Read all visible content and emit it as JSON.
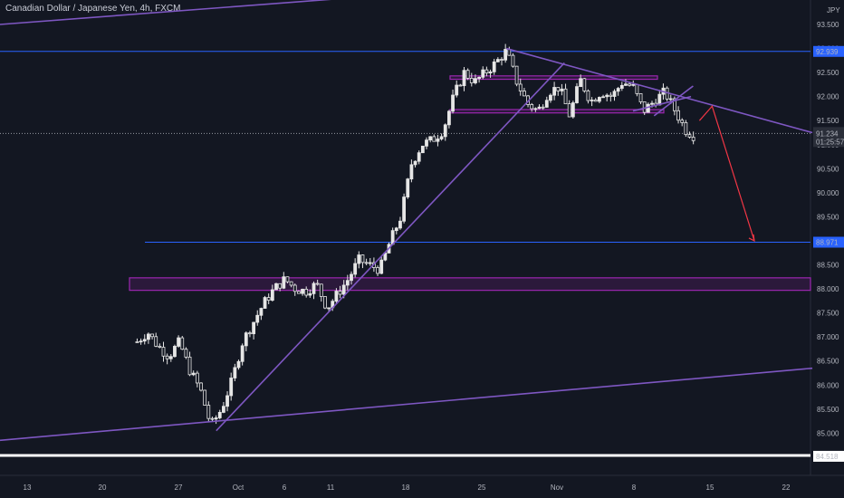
{
  "chart_data": {
    "type": "candlestick",
    "title": "Canadian Dollar / Japanese Yen, 4h, FXCM",
    "currency": "JPY",
    "y_ticks": [
      "93.500",
      "93.000",
      "92.500",
      "92.000",
      "91.500",
      "91.000",
      "90.500",
      "90.000",
      "89.500",
      "89.000",
      "88.500",
      "88.000",
      "87.500",
      "87.000",
      "86.500",
      "86.000",
      "85.500",
      "85.000"
    ],
    "x_ticks": [
      "13",
      "20",
      "27",
      "Oct",
      "6",
      "11",
      "18",
      "25",
      "Nov",
      "8",
      "15",
      "22"
    ],
    "ylim": [
      84.3,
      93.9
    ],
    "price_labels": {
      "resistance": "92.939",
      "target": "88.971",
      "current_price": "91.234",
      "countdown": "01:25:57",
      "bottom": "84.518"
    },
    "levels": [
      92.939,
      88.971,
      84.518,
      91.234
    ],
    "zones": [
      {
        "low": 87.97,
        "high": 88.23
      },
      {
        "low": 92.36,
        "high": 92.43
      },
      {
        "low": 91.66,
        "high": 91.73
      }
    ],
    "price_path": [
      [
        13,
        86.9
      ],
      [
        14,
        87.1
      ],
      [
        15,
        86.8
      ],
      [
        16,
        86.6
      ],
      [
        17,
        86.9
      ],
      [
        18,
        86.3
      ],
      [
        19,
        85.9
      ],
      [
        20,
        85.15
      ],
      [
        21,
        85.5
      ],
      [
        22,
        86.1
      ],
      [
        23,
        86.9
      ],
      [
        24,
        87.3
      ],
      [
        25,
        87.7
      ],
      [
        26,
        88.0
      ],
      [
        27,
        88.2
      ],
      [
        28,
        88.0
      ],
      [
        29,
        87.95
      ],
      [
        30,
        88.1
      ],
      [
        31,
        87.6
      ],
      [
        32,
        87.9
      ],
      [
        33,
        88.2
      ],
      [
        34,
        88.6
      ],
      [
        35,
        88.5
      ],
      [
        36,
        88.4
      ],
      [
        37,
        89.0
      ],
      [
        38,
        89.5
      ],
      [
        39,
        90.6
      ],
      [
        40,
        91.0
      ],
      [
        41,
        91.1
      ],
      [
        42,
        91.3
      ],
      [
        43,
        92.0
      ],
      [
        44,
        92.5
      ],
      [
        45,
        92.3
      ],
      [
        46,
        92.5
      ],
      [
        47,
        92.7
      ],
      [
        48,
        92.95
      ],
      [
        49,
        92.3
      ],
      [
        50,
        91.85
      ],
      [
        51,
        91.7
      ],
      [
        52,
        92.1
      ],
      [
        53,
        92.2
      ],
      [
        54,
        91.6
      ],
      [
        55,
        92.35
      ],
      [
        56,
        91.9
      ],
      [
        57,
        92.1
      ],
      [
        58,
        92.0
      ],
      [
        59,
        92.3
      ],
      [
        60,
        92.2
      ],
      [
        61,
        91.7
      ],
      [
        62,
        91.9
      ],
      [
        63,
        92.1
      ],
      [
        64,
        91.7
      ],
      [
        65,
        91.3
      ],
      [
        66,
        91.15
      ]
    ],
    "trendlines": [
      [
        [
          0,
          93.5
        ],
        [
          48,
          94.3
        ]
      ],
      [
        [
          20.5,
          85.05
        ],
        [
          53.5,
          92.7
        ]
      ],
      [
        [
          48,
          93.0
        ],
        [
          77,
          91.25
        ]
      ],
      [
        [
          0,
          84.85
        ],
        [
          77,
          86.35
        ]
      ],
      [
        [
          62,
          91.6
        ],
        [
          65.7,
          92.22
        ]
      ],
      [
        [
          60,
          91.7
        ],
        [
          65.5,
          92.0
        ]
      ]
    ],
    "projection_arrow": [
      [
        66.3,
        91.5
      ],
      [
        67.5,
        91.8
      ],
      [
        71.5,
        89.0
      ]
    ]
  },
  "colors": {
    "background": "#131722",
    "candle": "#e6e6e6",
    "trendline": "#7e57c2",
    "level": "#2962ff",
    "zone": "#9c27b0",
    "arrow": "#f23645",
    "axis_text": "#b2b5be"
  }
}
